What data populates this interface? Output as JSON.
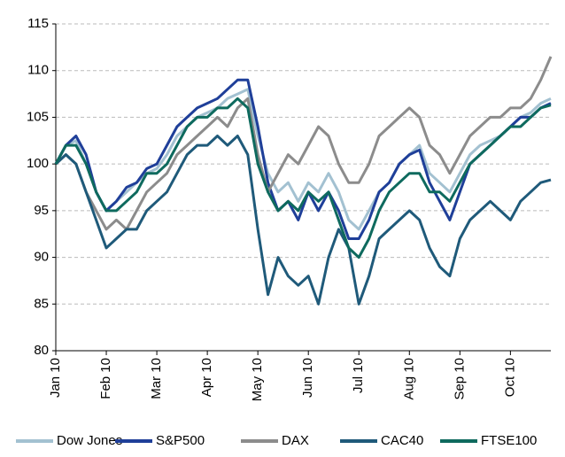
{
  "chart_data": {
    "type": "line",
    "categories": [
      "Jan 10",
      null,
      null,
      null,
      null,
      "Feb 10",
      null,
      null,
      null,
      null,
      "Mar 10",
      null,
      null,
      null,
      null,
      "Apr 10",
      null,
      null,
      null,
      null,
      "May 10",
      null,
      null,
      null,
      null,
      "Jun 10",
      null,
      null,
      null,
      null,
      "Jul 10",
      null,
      null,
      null,
      null,
      "Aug 10",
      null,
      null,
      null,
      null,
      "Sep 10",
      null,
      null,
      null,
      null,
      "Oct 10",
      null,
      null,
      null,
      null
    ],
    "series": [
      {
        "name": "Dow Jones",
        "color": "#a3c1d1",
        "values": [
          100,
          102,
          102.5,
          100,
          97,
          95,
          96,
          97,
          98,
          99,
          99.5,
          101,
          103,
          104,
          105,
          105.5,
          106,
          107,
          107.5,
          108,
          103,
          99,
          97,
          98,
          96,
          98,
          97,
          99,
          97,
          94,
          93,
          95,
          97,
          98,
          100,
          101,
          102,
          99,
          98,
          97,
          99,
          101,
          102,
          102.5,
          103,
          104,
          105,
          105.5,
          106.5,
          107
        ]
      },
      {
        "name": "S&P500",
        "color": "#1f3f99",
        "values": [
          100,
          102,
          103,
          101,
          97,
          95,
          96,
          97.5,
          98,
          99.5,
          100,
          102,
          104,
          105,
          106,
          106.5,
          107,
          108,
          109,
          109,
          104,
          98,
          95,
          96,
          94,
          97,
          95,
          97,
          95,
          92,
          92,
          94,
          97,
          98,
          100,
          101,
          101.5,
          98,
          96,
          94,
          97,
          100,
          101,
          102,
          103,
          104,
          105,
          105,
          106,
          106.5
        ]
      },
      {
        "name": "DAX",
        "color": "#8c8c8c",
        "values": [
          100,
          101,
          100,
          97,
          95,
          93,
          94,
          93,
          95,
          97,
          98,
          99,
          101,
          102,
          103,
          104,
          105,
          104,
          106,
          107,
          101,
          97,
          99,
          101,
          100,
          102,
          104,
          103,
          100,
          98,
          98,
          100,
          103,
          104,
          105,
          106,
          105,
          102,
          101,
          99,
          101,
          103,
          104,
          105,
          105,
          106,
          106,
          107,
          109,
          111.5
        ]
      },
      {
        "name": "CAC40",
        "color": "#1f5a7a",
        "values": [
          100,
          101,
          100,
          97,
          94,
          91,
          92,
          93,
          93,
          95,
          96,
          97,
          99,
          101,
          102,
          102,
          103,
          102,
          103,
          101,
          93,
          86,
          90,
          88,
          87,
          88,
          85,
          90,
          93,
          91,
          85,
          88,
          92,
          93,
          94,
          95,
          94,
          91,
          89,
          88,
          92,
          94,
          95,
          96,
          95,
          94,
          96,
          97,
          98,
          98.3
        ]
      },
      {
        "name": "FTSE100",
        "color": "#0e6a5e",
        "values": [
          100,
          102,
          102,
          100,
          97,
          95,
          95,
          96,
          97,
          99,
          99,
          100,
          102,
          104,
          105,
          105,
          106,
          106,
          107,
          106,
          100,
          97,
          95,
          96,
          95,
          97,
          96,
          97,
          94,
          91,
          90,
          92,
          95,
          97,
          98,
          99,
          99,
          97,
          97,
          96,
          98,
          100,
          101,
          102,
          103,
          104,
          104,
          105,
          106,
          106.3
        ]
      }
    ],
    "ylim": [
      80,
      115
    ],
    "yticks": [
      80,
      85,
      90,
      95,
      100,
      105,
      110,
      115
    ],
    "grid": true,
    "legend": "bottom"
  }
}
